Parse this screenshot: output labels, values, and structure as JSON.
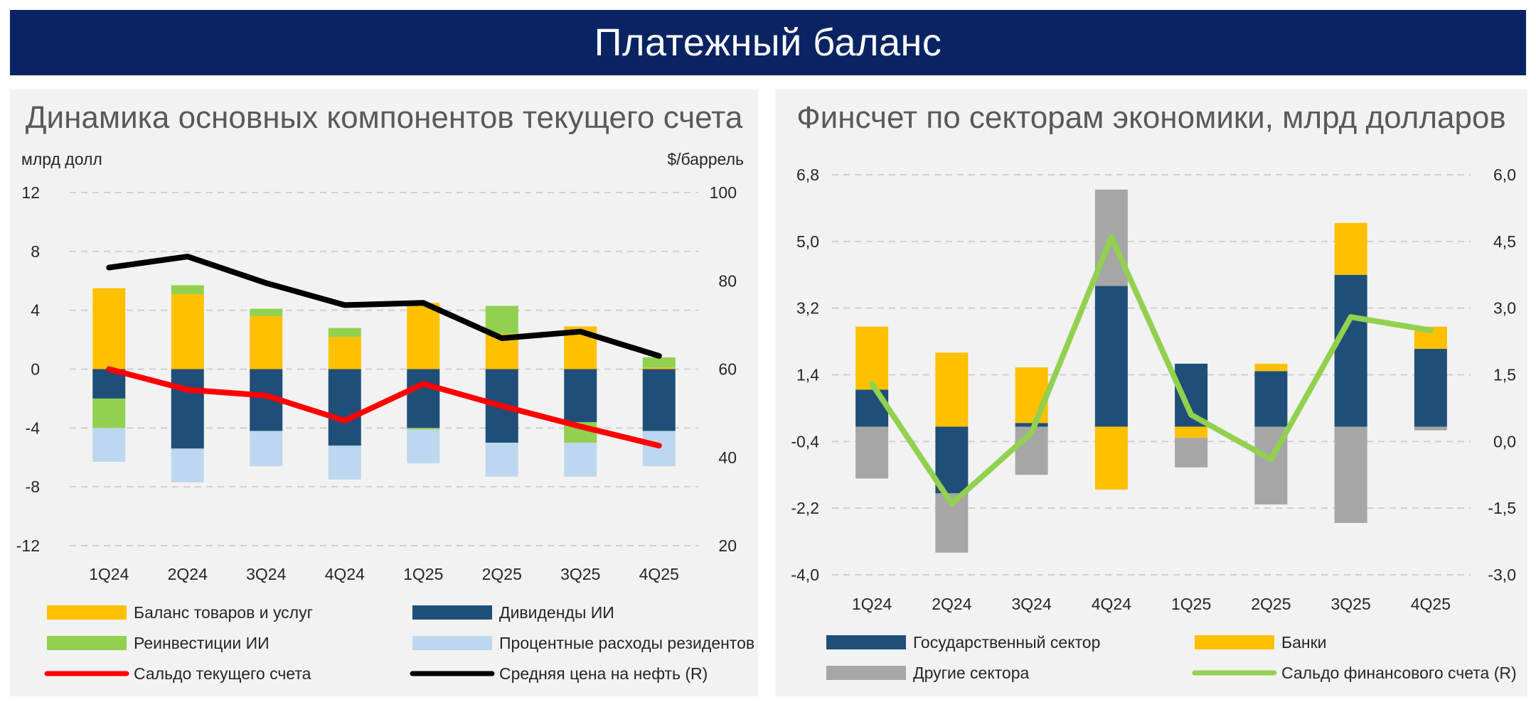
{
  "header": {
    "title": "Платежный баланс"
  },
  "chart_data": [
    {
      "type": "bar",
      "stacked": true,
      "title": "Динамика основных компонентов текущего счета",
      "ylabel": "млрд долл",
      "y2label": "$/баррель",
      "categories": [
        "1Q24",
        "2Q24",
        "3Q24",
        "4Q24",
        "1Q25",
        "2Q25",
        "3Q25",
        "4Q25"
      ],
      "ylim": [
        -12,
        12
      ],
      "yticks": [
        12,
        8,
        4,
        0,
        -4,
        -8,
        -12
      ],
      "y2lim": [
        20,
        100
      ],
      "y2ticks": [
        100,
        80,
        60,
        40,
        20
      ],
      "grid": true,
      "legend": "bottom",
      "series": [
        {
          "name": "Баланс товаров и услуг",
          "kind": "bar",
          "color": "#ffc000",
          "values": [
            5.5,
            5.1,
            3.6,
            2.2,
            4.5,
            2.4,
            2.9,
            0.1
          ]
        },
        {
          "name": "Дивиденды ИИ",
          "kind": "bar",
          "color": "#1f4e79",
          "values": [
            -2.0,
            -5.4,
            -4.2,
            -5.2,
            -4.0,
            -5.0,
            -3.6,
            -4.2
          ]
        },
        {
          "name": "Реинвестиции ИИ",
          "kind": "bar",
          "color": "#92d050",
          "values": [
            -2.0,
            0.6,
            0.5,
            0.6,
            -0.1,
            1.9,
            -1.4,
            0.7
          ]
        },
        {
          "name": "Процентные расходы резидентов",
          "kind": "bar",
          "color": "#bdd7ee",
          "values": [
            -2.3,
            -2.3,
            -2.4,
            -2.3,
            -2.3,
            -2.3,
            -2.3,
            -2.4
          ]
        },
        {
          "name": "Сальдо текущего счета",
          "kind": "line",
          "color": "#ff0000",
          "values": [
            0.0,
            -1.4,
            -1.8,
            -3.5,
            -1.0,
            -2.5,
            -3.9,
            -5.2
          ]
        },
        {
          "name": "Средняя цена на нефть (R)",
          "kind": "line",
          "axis": "right",
          "color": "#000000",
          "values": [
            83,
            85.5,
            79.5,
            74.5,
            75,
            67,
            68.5,
            63
          ]
        }
      ]
    },
    {
      "type": "bar",
      "stacked": true,
      "title": "Финсчет по секторам экономики, млрд долларов",
      "categories": [
        "1Q24",
        "2Q24",
        "3Q24",
        "4Q24",
        "1Q25",
        "2Q25",
        "3Q25",
        "4Q25"
      ],
      "ylim": [
        -4.0,
        6.8
      ],
      "yticks": [
        "6,8",
        "5,0",
        "3,2",
        "1,4",
        "-0,4",
        "-2,2",
        "-4,0"
      ],
      "y2lim": [
        -3.0,
        6.0
      ],
      "y2ticks": [
        "6,0",
        "4,5",
        "3,0",
        "1,5",
        "0,0",
        "-1,5",
        "-3,0"
      ],
      "grid": true,
      "legend": "bottom",
      "series": [
        {
          "name": "Государственный сектор",
          "kind": "bar",
          "color": "#1f4e79",
          "values": [
            1.0,
            -1.8,
            0.1,
            3.8,
            1.7,
            1.5,
            4.1,
            2.1
          ]
        },
        {
          "name": "Банки",
          "kind": "bar",
          "color": "#ffc000",
          "values": [
            1.7,
            2.0,
            1.5,
            -1.7,
            -0.3,
            0.2,
            1.4,
            0.6
          ]
        },
        {
          "name": "Другие сектора",
          "kind": "bar",
          "color": "#a6a6a6",
          "values": [
            -1.4,
            -1.6,
            -1.3,
            2.6,
            -0.8,
            -2.1,
            -2.6,
            -0.1
          ]
        },
        {
          "name": "Сальдо финансового счета (R)",
          "kind": "line",
          "axis": "right",
          "color": "#92d050",
          "values": [
            1.3,
            -1.4,
            0.2,
            4.6,
            0.6,
            -0.4,
            2.8,
            2.5
          ]
        }
      ]
    }
  ]
}
